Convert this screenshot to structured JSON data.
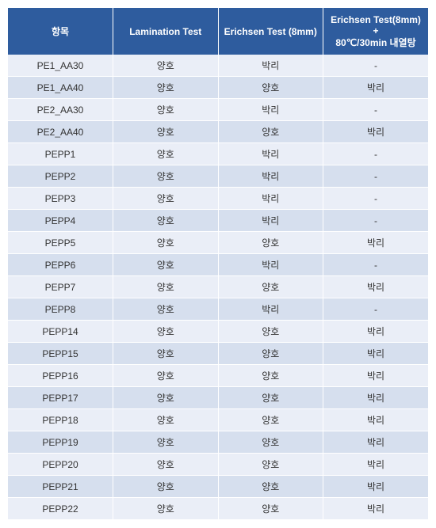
{
  "table": {
    "columns": [
      "항목",
      "Lamination Test",
      "Erichsen Test (8mm)",
      "Erichsen Test(8mm)\n+\n80℃/30min 내열탕"
    ],
    "header_bg": "#2e5c9e",
    "header_fg": "#ffffff",
    "row_bg_odd": "#eaeef7",
    "row_bg_even": "#d6dfee",
    "text_color": "#333333",
    "font_size_header": 12,
    "font_size_body": 12,
    "rows": [
      [
        "PE1_AA30",
        "양호",
        "박리",
        "-"
      ],
      [
        "PE1_AA40",
        "양호",
        "양호",
        "박리"
      ],
      [
        "PE2_AA30",
        "양호",
        "박리",
        "-"
      ],
      [
        "PE2_AA40",
        "양호",
        "양호",
        "박리"
      ],
      [
        "PEPP1",
        "양호",
        "박리",
        "-"
      ],
      [
        "PEPP2",
        "양호",
        "박리",
        "-"
      ],
      [
        "PEPP3",
        "양호",
        "박리",
        "-"
      ],
      [
        "PEPP4",
        "양호",
        "박리",
        "-"
      ],
      [
        "PEPP5",
        "양호",
        "양호",
        "박리"
      ],
      [
        "PEPP6",
        "양호",
        "박리",
        "-"
      ],
      [
        "PEPP7",
        "양호",
        "양호",
        "박리"
      ],
      [
        "PEPP8",
        "양호",
        "박리",
        "-"
      ],
      [
        "PEPP14",
        "양호",
        "양호",
        "박리"
      ],
      [
        "PEPP15",
        "양호",
        "양호",
        "박리"
      ],
      [
        "PEPP16",
        "양호",
        "양호",
        "박리"
      ],
      [
        "PEPP17",
        "양호",
        "양호",
        "박리"
      ],
      [
        "PEPP18",
        "양호",
        "양호",
        "박리"
      ],
      [
        "PEPP19",
        "양호",
        "양호",
        "박리"
      ],
      [
        "PEPP20",
        "양호",
        "양호",
        "박리"
      ],
      [
        "PEPP21",
        "양호",
        "양호",
        "박리"
      ],
      [
        "PEPP22",
        "양호",
        "양호",
        "박리"
      ]
    ]
  }
}
